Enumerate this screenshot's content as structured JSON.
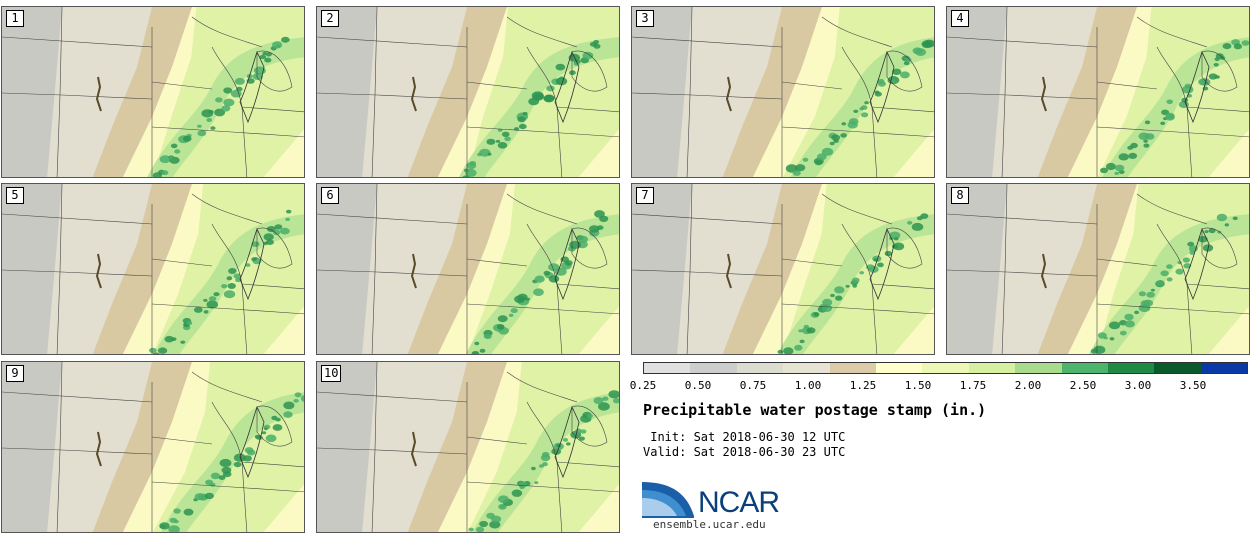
{
  "panels": [
    {
      "label": "1"
    },
    {
      "label": "2"
    },
    {
      "label": "3"
    },
    {
      "label": "4"
    },
    {
      "label": "5"
    },
    {
      "label": "6"
    },
    {
      "label": "7"
    },
    {
      "label": "8"
    },
    {
      "label": "9"
    },
    {
      "label": "10"
    }
  ],
  "colorbar": {
    "ticks": [
      "0.25",
      "0.50",
      "0.75",
      "1.00",
      "1.25",
      "1.50",
      "1.75",
      "2.00",
      "2.50",
      "3.00",
      "3.50"
    ],
    "colors": [
      "#e0e0e0",
      "#cdcdcd",
      "#dcdcd0",
      "#e8e4d4",
      "#dccba8",
      "#ffffcc",
      "#eef8b6",
      "#d4f0a0",
      "#a8dc8c",
      "#4db46b",
      "#1f8a44",
      "#0a5a2c",
      "#0a3aa8"
    ]
  },
  "title": "Precipitable water postage stamp (in.)",
  "init_text": " Init: Sat 2018-06-30 12 UTC",
  "valid_text": "Valid: Sat 2018-06-30 23 UTC",
  "logo": {
    "name": "NCAR",
    "url": "ensemble.ucar.edu"
  }
}
